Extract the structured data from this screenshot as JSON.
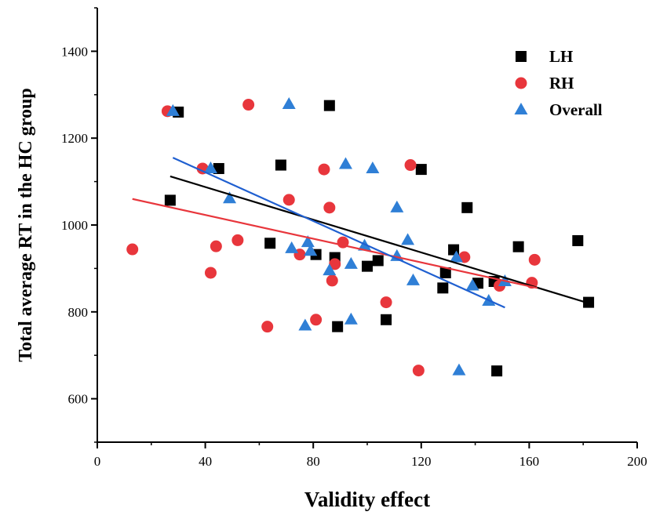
{
  "chart_data": {
    "type": "scatter",
    "title": "",
    "xlabel": "Validity effect",
    "ylabel": "Total average RT in the HC group",
    "xlim": [
      0,
      200
    ],
    "ylim": [
      500,
      1500
    ],
    "xticks": [
      0,
      40,
      80,
      120,
      160,
      200
    ],
    "yticks": [
      600,
      800,
      1000,
      1200,
      1400
    ],
    "xtick_labels": [
      "0",
      "40",
      "80",
      "120",
      "160",
      "200"
    ],
    "ytick_labels": [
      "600",
      "800",
      "1000",
      "1200",
      "1400"
    ],
    "legend_position": "top-right",
    "series": [
      {
        "name": "LH",
        "marker": "square",
        "color": "#000000",
        "points": [
          [
            27,
            1057
          ],
          [
            30,
            1260
          ],
          [
            45,
            1130
          ],
          [
            64,
            958
          ],
          [
            68,
            1138
          ],
          [
            81,
            932
          ],
          [
            86,
            1275
          ],
          [
            88,
            925
          ],
          [
            89,
            766
          ],
          [
            100,
            905
          ],
          [
            104,
            918
          ],
          [
            107,
            782
          ],
          [
            120,
            1128
          ],
          [
            128,
            855
          ],
          [
            129,
            890
          ],
          [
            132,
            943
          ],
          [
            137,
            1040
          ],
          [
            141,
            866
          ],
          [
            147,
            870
          ],
          [
            148,
            664
          ],
          [
            156,
            950
          ],
          [
            178,
            964
          ],
          [
            182,
            822
          ]
        ],
        "fit": {
          "x": [
            27,
            182
          ],
          "y": [
            1112,
            820
          ],
          "color": "#000000"
        }
      },
      {
        "name": "RH",
        "marker": "circle",
        "color": "#e8363c",
        "points": [
          [
            13,
            944
          ],
          [
            26,
            1262
          ],
          [
            39,
            1130
          ],
          [
            42,
            890
          ],
          [
            44,
            951
          ],
          [
            52,
            965
          ],
          [
            63,
            766
          ],
          [
            56,
            1277
          ],
          [
            71,
            1058
          ],
          [
            75,
            932
          ],
          [
            81,
            782
          ],
          [
            84,
            1128
          ],
          [
            86,
            1040
          ],
          [
            87,
            872
          ],
          [
            88,
            910
          ],
          [
            91,
            960
          ],
          [
            107,
            822
          ],
          [
            116,
            1138
          ],
          [
            119,
            665
          ],
          [
            136,
            926
          ],
          [
            149,
            860
          ],
          [
            161,
            867
          ],
          [
            162,
            920
          ]
        ],
        "fit": {
          "x": [
            13,
            163
          ],
          "y": [
            1060,
            855
          ],
          "color": "#e8363c"
        }
      },
      {
        "name": "Overall",
        "marker": "triangle",
        "color": "#2f7fd6",
        "points": [
          [
            28,
            1262
          ],
          [
            42,
            1130
          ],
          [
            49,
            1061
          ],
          [
            71,
            1278
          ],
          [
            72,
            946
          ],
          [
            77,
            768
          ],
          [
            78,
            960
          ],
          [
            79,
            940
          ],
          [
            86,
            895
          ],
          [
            94,
            910
          ],
          [
            94,
            782
          ],
          [
            92,
            1140
          ],
          [
            99,
            952
          ],
          [
            102,
            1130
          ],
          [
            111,
            1040
          ],
          [
            111,
            928
          ],
          [
            115,
            965
          ],
          [
            117,
            872
          ],
          [
            133,
            925
          ],
          [
            134,
            665
          ],
          [
            139,
            860
          ],
          [
            145,
            825
          ],
          [
            151,
            870
          ]
        ],
        "fit": {
          "x": [
            28,
            151
          ],
          "y": [
            1155,
            810
          ],
          "color": "#1f5fd0"
        }
      }
    ]
  }
}
